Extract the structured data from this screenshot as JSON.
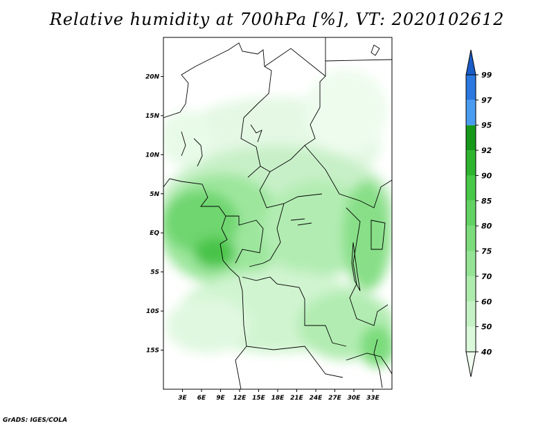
{
  "title": "Relative humidity at 700hPa [%], VT: 2020102612",
  "credit": "GrADS: IGES/COLA",
  "map": {
    "lon_range": [
      0,
      36
    ],
    "lat_range": [
      -20,
      25
    ],
    "lon_ticks": [
      "3E",
      "6E",
      "9E",
      "12E",
      "15E",
      "18E",
      "21E",
      "24E",
      "27E",
      "30E",
      "33E"
    ],
    "lat_ticks": [
      "20N",
      "15N",
      "10N",
      "5N",
      "EQ",
      "5S",
      "10S",
      "15S"
    ]
  },
  "colorbar": {
    "levels": [
      "40",
      "50",
      "60",
      "70",
      "75",
      "80",
      "85",
      "90",
      "92",
      "95",
      "97",
      "99"
    ],
    "colors": [
      "#f0fff0",
      "#daf8da",
      "#c4f2c4",
      "#aeecae",
      "#95e495",
      "#7cdc7c",
      "#62d262",
      "#48c848",
      "#2eb42e",
      "#17981a",
      "#4a9cf0",
      "#2a78e0",
      "#1a5cc8"
    ]
  }
}
